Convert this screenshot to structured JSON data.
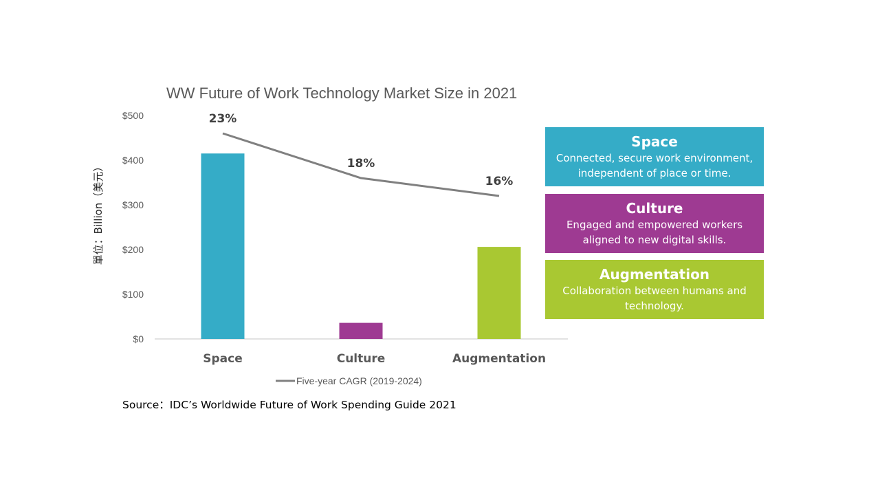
{
  "chart_data": {
    "type": "bar",
    "title": "WW Future of Work Technology Market Size in 2021",
    "ylabel": "單位：Billion（美元）",
    "xlabel": "",
    "categories": [
      "Space",
      "Culture",
      "Augmentation"
    ],
    "ylim": [
      0,
      500
    ],
    "yticks": [
      "$0",
      "$100",
      "$200",
      "$300",
      "$400",
      "$500"
    ],
    "ytick_values": [
      0,
      100,
      200,
      300,
      400,
      500
    ],
    "series": [
      {
        "values": [
          415,
          36,
          206
        ],
        "colors": [
          "#35acc7",
          "#9e3a92",
          "#a9c832"
        ]
      },
      {
        "name": "Five-year CAGR (2019-2024)",
        "type": "line",
        "color": "#808080",
        "values": [
          23,
          18,
          16
        ],
        "labels": [
          "23%",
          "18%",
          "16%"
        ],
        "plotted_at": [
          460,
          360,
          320
        ]
      }
    ],
    "legend": "bottom",
    "grid": false
  },
  "source": "Source：IDC’s Worldwide Future of Work Spending Guide 2021",
  "boxes": [
    {
      "title": "Space",
      "lines": [
        "Connected, secure work environment,",
        "independent of place or time."
      ],
      "color": "#35acc7"
    },
    {
      "title": "Culture",
      "lines": [
        "Engaged and empowered workers",
        "aligned to new digital skills."
      ],
      "color": "#9e3a92"
    },
    {
      "title": "Augmentation",
      "lines": [
        "Collaboration between humans and",
        "technology."
      ],
      "color": "#a9c832"
    }
  ]
}
